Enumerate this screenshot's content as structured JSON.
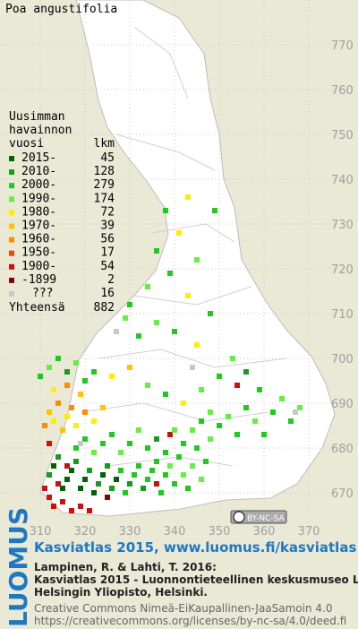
{
  "map": {
    "title": "Poa angustifolia",
    "legend": {
      "heading": [
        "Uusimman",
        "havainnon"
      ],
      "col_year": "vuosi",
      "col_count": "lkm",
      "entries": [
        {
          "label": "2015-",
          "count": 45,
          "color": "#006400"
        },
        {
          "label": "2010-",
          "count": 128,
          "color": "#1a9a1a"
        },
        {
          "label": "2000-",
          "count": 279,
          "color": "#22c822"
        },
        {
          "label": "1990-",
          "count": 174,
          "color": "#66ee44"
        },
        {
          "label": "1980-",
          "count": 72,
          "color": "#ffee00"
        },
        {
          "label": "1970-",
          "count": 39,
          "color": "#ffc400"
        },
        {
          "label": "1960-",
          "count": 56,
          "color": "#ff8c00"
        },
        {
          "label": "1950-",
          "count": 17,
          "color": "#e84a0a"
        },
        {
          "label": "1900-",
          "count": 54,
          "color": "#cc1010"
        },
        {
          "label": "-1899",
          "count": 2,
          "color": "#7a0a0a"
        },
        {
          "label": "???",
          "count": 16,
          "color": "#c8c8c8"
        }
      ],
      "total_label": "Yhteensä",
      "total": 882
    },
    "xticks": [
      310,
      320,
      330,
      340,
      350,
      360,
      370
    ],
    "yticks": [
      670,
      680,
      690,
      700,
      710,
      720,
      730,
      740,
      750,
      760,
      770
    ],
    "xlim": [
      310,
      370
    ],
    "ylim": [
      670,
      770
    ],
    "license_badge": "BY-NC-SA",
    "dots": [
      [
        311,
        671,
        8
      ],
      [
        312,
        669,
        8
      ],
      [
        313,
        667,
        8
      ],
      [
        315,
        668,
        8
      ],
      [
        317,
        666,
        8
      ],
      [
        319,
        667,
        8
      ],
      [
        321,
        666,
        8
      ],
      [
        314,
        672,
        8
      ],
      [
        316,
        676,
        8
      ],
      [
        312,
        681,
        8
      ],
      [
        336,
        672,
        8
      ],
      [
        325,
        669,
        9
      ],
      [
        339,
        683,
        8
      ],
      [
        354,
        694,
        8
      ],
      [
        312,
        674,
        1
      ],
      [
        313,
        676,
        0
      ],
      [
        314,
        678,
        1
      ],
      [
        315,
        671,
        0
      ],
      [
        316,
        673,
        0
      ],
      [
        317,
        675,
        0
      ],
      [
        318,
        677,
        1
      ],
      [
        319,
        671,
        0
      ],
      [
        320,
        673,
        0
      ],
      [
        321,
        675,
        1
      ],
      [
        322,
        670,
        0
      ],
      [
        323,
        672,
        1
      ],
      [
        324,
        674,
        0
      ],
      [
        325,
        676,
        1
      ],
      [
        326,
        671,
        1
      ],
      [
        327,
        673,
        0
      ],
      [
        328,
        675,
        2
      ],
      [
        329,
        670,
        2
      ],
      [
        330,
        672,
        1
      ],
      [
        331,
        674,
        2
      ],
      [
        332,
        676,
        2
      ],
      [
        333,
        671,
        1
      ],
      [
        334,
        673,
        2
      ],
      [
        335,
        675,
        2
      ],
      [
        336,
        677,
        2
      ],
      [
        337,
        670,
        2
      ],
      [
        338,
        674,
        2
      ],
      [
        339,
        676,
        3
      ],
      [
        340,
        672,
        2
      ],
      [
        341,
        678,
        2
      ],
      [
        342,
        674,
        3
      ],
      [
        343,
        671,
        2
      ],
      [
        344,
        676,
        3
      ],
      [
        345,
        680,
        2
      ],
      [
        346,
        673,
        3
      ],
      [
        347,
        677,
        2
      ],
      [
        348,
        682,
        3
      ],
      [
        318,
        680,
        2
      ],
      [
        320,
        682,
        2
      ],
      [
        322,
        679,
        3
      ],
      [
        324,
        681,
        2
      ],
      [
        326,
        683,
        2
      ],
      [
        328,
        679,
        3
      ],
      [
        330,
        681,
        2
      ],
      [
        332,
        684,
        3
      ],
      [
        334,
        680,
        2
      ],
      [
        336,
        682,
        1
      ],
      [
        338,
        679,
        2
      ],
      [
        340,
        684,
        3
      ],
      [
        342,
        681,
        2
      ],
      [
        344,
        684,
        3
      ],
      [
        346,
        686,
        2
      ],
      [
        348,
        688,
        3
      ],
      [
        350,
        685,
        2
      ],
      [
        352,
        687,
        3
      ],
      [
        354,
        683,
        2
      ],
      [
        356,
        689,
        2
      ],
      [
        358,
        686,
        3
      ],
      [
        360,
        683,
        2
      ],
      [
        362,
        688,
        2
      ],
      [
        364,
        691,
        3
      ],
      [
        366,
        686,
        2
      ],
      [
        368,
        689,
        3
      ],
      [
        311,
        685,
        6
      ],
      [
        312,
        688,
        5
      ],
      [
        313,
        686,
        4
      ],
      [
        314,
        690,
        6
      ],
      [
        315,
        684,
        5
      ],
      [
        316,
        687,
        4
      ],
      [
        317,
        689,
        6
      ],
      [
        318,
        685,
        4
      ],
      [
        319,
        692,
        5
      ],
      [
        320,
        688,
        6
      ],
      [
        322,
        686,
        4
      ],
      [
        324,
        689,
        5
      ],
      [
        313,
        693,
        4
      ],
      [
        316,
        694,
        6
      ],
      [
        310,
        696,
        2
      ],
      [
        312,
        698,
        3
      ],
      [
        314,
        700,
        2
      ],
      [
        316,
        697,
        1
      ],
      [
        318,
        699,
        3
      ],
      [
        320,
        695,
        2
      ],
      [
        322,
        697,
        2
      ],
      [
        326,
        696,
        4
      ],
      [
        330,
        698,
        5
      ],
      [
        334,
        694,
        3
      ],
      [
        338,
        692,
        2
      ],
      [
        342,
        690,
        4
      ],
      [
        346,
        693,
        3
      ],
      [
        350,
        696,
        2
      ],
      [
        353,
        700,
        3
      ],
      [
        356,
        697,
        1
      ],
      [
        359,
        693,
        2
      ],
      [
        332,
        705,
        2
      ],
      [
        336,
        708,
        3
      ],
      [
        340,
        706,
        2
      ],
      [
        345,
        703,
        4
      ],
      [
        330,
        712,
        2
      ],
      [
        334,
        716,
        3
      ],
      [
        339,
        719,
        2
      ],
      [
        343,
        714,
        4
      ],
      [
        348,
        710,
        2
      ],
      [
        336,
        724,
        2
      ],
      [
        341,
        728,
        4
      ],
      [
        345,
        722,
        3
      ],
      [
        338,
        733,
        2
      ],
      [
        343,
        736,
        4
      ],
      [
        349,
        733,
        2
      ],
      [
        329,
        709,
        3
      ],
      [
        327,
        706,
        10
      ],
      [
        344,
        698,
        10
      ],
      [
        367,
        688,
        10
      ],
      [
        319,
        681,
        10
      ]
    ],
    "footer": {
      "brand": "LUOMUS",
      "heading": "Kasviatlas 2015, www.luomus.fi/kasviatlas",
      "citation": [
        "Lampinen, R. & Lahti, T. 2016:",
        "Kasviatlas 2015 - Luonnontieteellinen keskusmuseo Luomus,",
        "Helsingin Yliopisto, Helsinki."
      ],
      "license": [
        "Creative Commons Nimeä-EiKaupallinen-JaaSamoin 4.0",
        "https://creativecommons.org/licenses/by-nc-sa/4.0/deed.fi"
      ]
    }
  }
}
